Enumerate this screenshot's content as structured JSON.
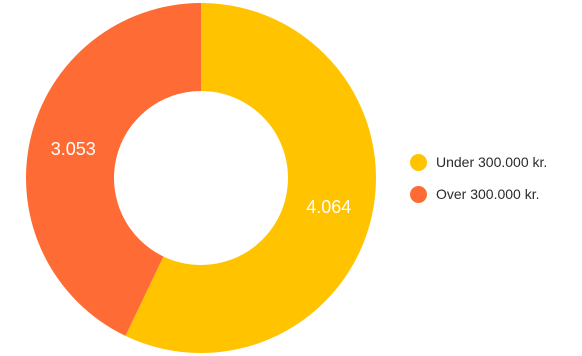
{
  "chart_data": {
    "type": "pie",
    "variant": "donut",
    "title": "",
    "categories": [
      "Under 300.000 kr.",
      "Over 300.000 kr."
    ],
    "values": [
      4064,
      3053
    ],
    "value_labels": [
      "4.064",
      "3.053"
    ],
    "colors": [
      "#FFC300",
      "#FF6B35"
    ],
    "legend_position": "right"
  }
}
